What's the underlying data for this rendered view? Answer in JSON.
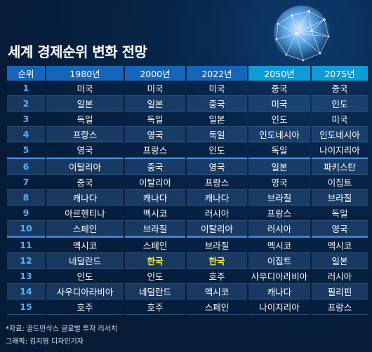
{
  "title": "세계 경제순위 변화 전망",
  "headers": [
    "순위",
    "1980년",
    "2000년",
    "2022년",
    "2050년",
    "2075년"
  ],
  "rows": [
    [
      "1",
      "미국",
      "미국",
      "미국",
      "중국",
      "중국"
    ],
    [
      "2",
      "일본",
      "일본",
      "중국",
      "미국",
      "인도"
    ],
    [
      "3",
      "독일",
      "독일",
      "일본",
      "인도",
      "미국"
    ],
    [
      "4",
      "프랑스",
      "영국",
      "독일",
      "인도네시아",
      "인도네시아"
    ],
    [
      "5",
      "영국",
      "프랑스",
      "인도",
      "독일",
      "나이지리아"
    ],
    [
      "6",
      "이탈리아",
      "중국",
      "영국",
      "일본",
      "파키스탄"
    ],
    [
      "7",
      "중국",
      "이탈리아",
      "프랑스",
      "영국",
      "이집트"
    ],
    [
      "8",
      "캐나다",
      "캐나다",
      "캐나다",
      "브라질",
      "브라질"
    ],
    [
      "9",
      "아르헨티나",
      "멕시코",
      "러시아",
      "프랑스",
      "독일"
    ],
    [
      "10",
      "스페인",
      "브라질",
      "이탈리아",
      "러시아",
      "영국"
    ],
    [
      "11",
      "멕시코",
      "스페인",
      "브라질",
      "멕시코",
      "멕시코"
    ],
    [
      "12",
      "네덜란드",
      "한국",
      "한국",
      "이집트",
      "일본"
    ],
    [
      "13",
      "인도",
      "인도",
      "호주",
      "사우디아라비아",
      "러시아"
    ],
    [
      "14",
      "사우디아라비아",
      "네덜란드",
      "멕시코",
      "캐나다",
      "필리핀"
    ],
    [
      "15",
      "호주",
      "호주",
      "스페인",
      "나이지리아",
      "프랑스"
    ]
  ],
  "highlight_text": "한국",
  "colors": {
    "highlight": "#f5e63a",
    "header_past": "#1565b8",
    "header_future": "#0e9bd6",
    "rank_number": "#4fb3ff"
  },
  "source_note": "*자료: 골드만삭스 글로벌 투자 리서치",
  "credit": "그래픽: 김지영 디자인기자",
  "icons": [
    "globe-network-icon"
  ]
}
